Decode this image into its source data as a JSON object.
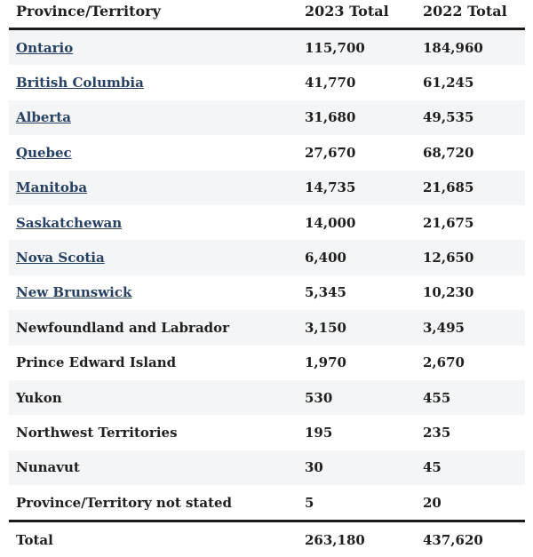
{
  "chart_data": {
    "type": "table",
    "title": "",
    "categories": [
      "Ontario",
      "British Columbia",
      "Alberta",
      "Quebec",
      "Manitoba",
      "Saskatchewan",
      "Nova Scotia",
      "New Brunswick",
      "Newfoundland and Labrador",
      "Prince Edward Island",
      "Yukon",
      "Northwest Territories",
      "Nunavut",
      "Province/Territory not stated"
    ],
    "series": [
      {
        "name": "2023 Total",
        "values": [
          115700,
          41770,
          31680,
          27670,
          14735,
          14000,
          6400,
          5345,
          3150,
          1970,
          530,
          195,
          30,
          5
        ],
        "total": 263180
      },
      {
        "name": "2022 Total",
        "values": [
          184960,
          61245,
          49535,
          68720,
          21685,
          21675,
          12650,
          10230,
          3495,
          2670,
          455,
          235,
          45,
          20
        ],
        "total": 437620
      }
    ]
  },
  "table": {
    "columns": [
      "Province/Territory",
      "2023 Total",
      "2022 Total"
    ],
    "rows": [
      {
        "name": "Ontario",
        "y2023": "115,700",
        "y2022": "184,960",
        "is_link": true
      },
      {
        "name": "British Columbia",
        "y2023": "41,770",
        "y2022": "61,245",
        "is_link": true
      },
      {
        "name": "Alberta",
        "y2023": "31,680",
        "y2022": "49,535",
        "is_link": true
      },
      {
        "name": "Quebec",
        "y2023": "27,670",
        "y2022": "68,720",
        "is_link": true
      },
      {
        "name": "Manitoba",
        "y2023": "14,735",
        "y2022": "21,685",
        "is_link": true
      },
      {
        "name": "Saskatchewan",
        "y2023": "14,000",
        "y2022": "21,675",
        "is_link": true
      },
      {
        "name": "Nova Scotia",
        "y2023": "6,400",
        "y2022": "12,650",
        "is_link": true
      },
      {
        "name": "New Brunswick",
        "y2023": "5,345",
        "y2022": "10,230",
        "is_link": true
      },
      {
        "name": "Newfoundland and Labrador",
        "y2023": "3,150",
        "y2022": "3,495",
        "is_link": false
      },
      {
        "name": "Prince Edward Island",
        "y2023": "1,970",
        "y2022": "2,670",
        "is_link": false
      },
      {
        "name": "Yukon",
        "y2023": "530",
        "y2022": "455",
        "is_link": false
      },
      {
        "name": "Northwest Territories",
        "y2023": "195",
        "y2022": "235",
        "is_link": false
      },
      {
        "name": "Nunavut",
        "y2023": "30",
        "y2022": "45",
        "is_link": false
      },
      {
        "name": "Province/Territory not stated",
        "y2023": "5",
        "y2022": "20",
        "is_link": false
      }
    ],
    "total_row": {
      "name": "Total",
      "y2023": "263,180",
      "y2022": "437,620"
    }
  },
  "colors": {
    "link": "#284162",
    "stripe": "#f4f5f6",
    "heavy_border": "#1b1b1b",
    "text": "#1f1f1f"
  }
}
